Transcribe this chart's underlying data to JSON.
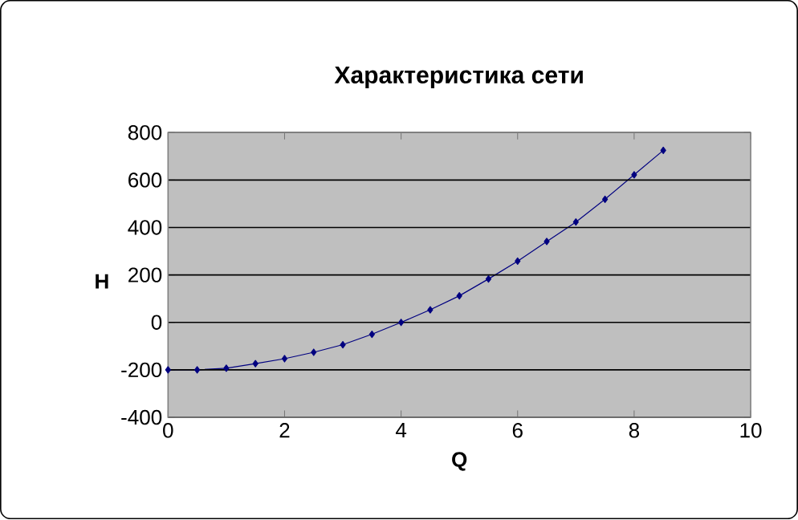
{
  "chart_data": {
    "type": "line",
    "title": "Характеристика сети",
    "xlabel": "Q",
    "ylabel": "H",
    "x": [
      0,
      0.5,
      1,
      1.5,
      2,
      2.5,
      3,
      3.5,
      4,
      4.5,
      5,
      5.5,
      6,
      6.5,
      7,
      7.5,
      8,
      8.5
    ],
    "series": [
      {
        "color": "#000080",
        "values": [
          -200,
          -200,
          -193,
          -174,
          -153,
          -126,
          -94,
          -50,
          0,
          53,
          112,
          183,
          258,
          341,
          423,
          519,
          622,
          725
        ]
      }
    ],
    "xlim": [
      0,
      10
    ],
    "xticks": [
      0,
      2,
      4,
      6,
      8,
      10
    ],
    "ylim": [
      -400,
      800
    ],
    "yticks": [
      -400,
      -200,
      0,
      200,
      400,
      600,
      800
    ],
    "grid": "y",
    "marker": "diamond",
    "line_style": "solid"
  }
}
